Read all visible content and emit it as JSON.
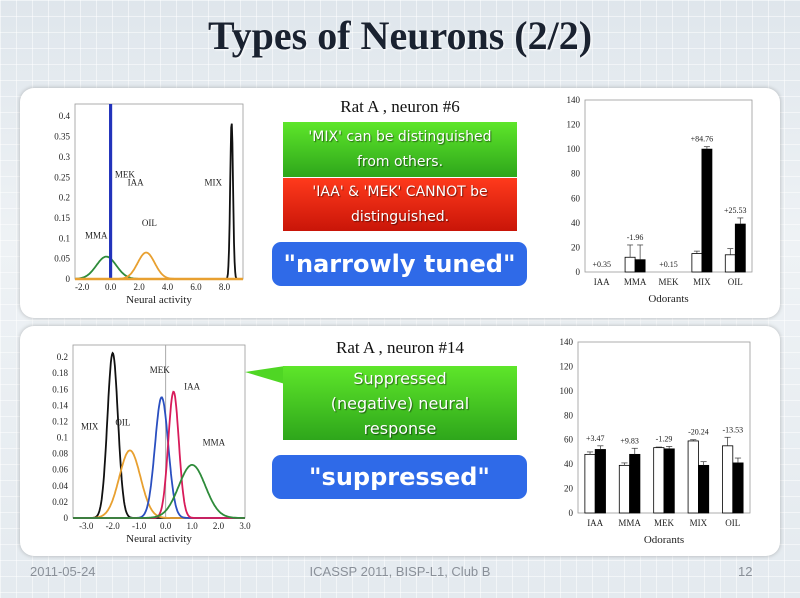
{
  "title": "Types of Neurons (2/2)",
  "panel1": {
    "caption": "Rat A , neuron #6",
    "green_text": "'MIX' can be distinguished from others.",
    "red_text": "'IAA' & 'MEK' CANNOT be distinguished.",
    "tag": "\"narrowly tuned\""
  },
  "panel2": {
    "caption": "Rat A , neuron #14",
    "green_text": "Suppressed (negative) neural response",
    "tag": "\"suppressed\""
  },
  "footer": {
    "date": "2011-05-24",
    "event": "ICASSP 2011, BISP-L1, Club B",
    "page": "12"
  },
  "colors": {
    "green": "#3cc41f",
    "red": "#e52010",
    "blue": "#2f6ae8"
  },
  "chart_data": [
    {
      "type": "line",
      "xlabel": "Neural activity",
      "xlim": [
        -2.5,
        9.3
      ],
      "ylim": [
        0,
        0.43
      ],
      "xticks": [
        "-2.0",
        "0.0",
        "2.0",
        "4.0",
        "6.0",
        "8.0"
      ],
      "xtickvals": [
        -2,
        0,
        2,
        4,
        6,
        8
      ],
      "yticks": [
        "0",
        "0.05",
        "0.1",
        "0.15",
        "0.2",
        "0.25",
        "0.3",
        "0.35",
        "0.4"
      ],
      "ytickvals": [
        0,
        0.05,
        0.1,
        0.15,
        0.2,
        0.25,
        0.3,
        0.35,
        0.4
      ],
      "series": [
        {
          "name": "MMA",
          "color": "#2e8b3a",
          "mean": -0.3,
          "peak": 0.055,
          "sd": 0.7
        },
        {
          "name": "OIL",
          "color": "#e8a030",
          "mean": 2.5,
          "peak": 0.065,
          "sd": 0.6
        },
        {
          "name": "MIX",
          "color": "#111111",
          "mean": 8.5,
          "peak": 0.385,
          "sd": 0.1
        },
        {
          "name": "MEK",
          "color": "#2233bb",
          "mean": 0,
          "peak": 0.43,
          "sd": 0.01
        },
        {
          "name": "IAA",
          "color": "#2233bb",
          "mean": 0,
          "peak": 0.43,
          "sd": 0.01
        }
      ],
      "annotations": [
        {
          "text": "MEK",
          "x": 0.3,
          "y": 0.25
        },
        {
          "text": "IAA",
          "x": 1.2,
          "y": 0.23
        },
        {
          "text": "MIX",
          "x": 6.6,
          "y": 0.23
        },
        {
          "text": "OIL",
          "x": 2.2,
          "y": 0.13
        },
        {
          "text": "MMA",
          "x": -1.8,
          "y": 0.1
        }
      ]
    },
    {
      "type": "bar",
      "xlabel": "Odorants",
      "ylim": [
        0,
        140
      ],
      "yticks": [
        "0",
        "20",
        "40",
        "60",
        "80",
        "100",
        "120",
        "140"
      ],
      "ytickvals": [
        0,
        20,
        40,
        60,
        80,
        100,
        120,
        140
      ],
      "categories": [
        "IAA",
        "MMA",
        "MEK",
        "MIX",
        "OIL"
      ],
      "series": [
        {
          "color": "#ffffff",
          "values": [
            0,
            12,
            0,
            15,
            14
          ],
          "err": [
            0,
            10,
            0,
            2,
            5
          ]
        },
        {
          "color": "#000000",
          "values": [
            0,
            10,
            0,
            100,
            39
          ],
          "err": [
            0,
            12,
            0,
            2,
            5
          ]
        }
      ],
      "labels": [
        "+0.35",
        "-1.96",
        "+0.15",
        "+84.76",
        "+25.53"
      ]
    },
    {
      "type": "line",
      "xlabel": "Neural activity",
      "xlim": [
        -3.5,
        3.0
      ],
      "ylim": [
        0,
        0.215
      ],
      "xticks": [
        "-3.0",
        "-2.0",
        "-1.0",
        "0.0",
        "1.0",
        "2.0",
        "3.0"
      ],
      "xtickvals": [
        -3,
        -2,
        -1,
        0,
        1,
        2,
        3
      ],
      "yticks": [
        "0",
        "0.02",
        "0.04",
        "0.06",
        "0.08",
        "0.1",
        "0.12",
        "0.14",
        "0.16",
        "0.18",
        "0.2"
      ],
      "ytickvals": [
        0,
        0.02,
        0.04,
        0.06,
        0.08,
        0.1,
        0.12,
        0.14,
        0.16,
        0.18,
        0.2
      ],
      "series": [
        {
          "name": "MIX",
          "color": "#111111",
          "mean": -2.0,
          "peak": 0.205,
          "sd": 0.2
        },
        {
          "name": "OIL",
          "color": "#e8a030",
          "mean": -1.35,
          "peak": 0.084,
          "sd": 0.4
        },
        {
          "name": "MEK",
          "color": "#2a4fc0",
          "mean": -0.15,
          "peak": 0.15,
          "sd": 0.25
        },
        {
          "name": "IAA",
          "color": "#d81b5a",
          "mean": 0.3,
          "peak": 0.157,
          "sd": 0.2
        },
        {
          "name": "MMA",
          "color": "#2e8b3a",
          "mean": 1.0,
          "peak": 0.066,
          "sd": 0.5
        }
      ],
      "annotations": [
        {
          "text": "MIX",
          "x": -3.2,
          "y": 0.11
        },
        {
          "text": "OIL",
          "x": -1.9,
          "y": 0.115
        },
        {
          "text": "MEK",
          "x": -0.6,
          "y": 0.18
        },
        {
          "text": "IAA",
          "x": 0.7,
          "y": 0.16
        },
        {
          "text": "MMA",
          "x": 1.4,
          "y": 0.09
        }
      ]
    },
    {
      "type": "bar",
      "xlabel": "Odorants",
      "ylim": [
        0,
        140
      ],
      "yticks": [
        "0",
        "20",
        "40",
        "60",
        "80",
        "100",
        "120",
        "140"
      ],
      "ytickvals": [
        0,
        20,
        40,
        60,
        80,
        100,
        120,
        140
      ],
      "categories": [
        "IAA",
        "MMA",
        "MEK",
        "MIX",
        "OIL"
      ],
      "series": [
        {
          "color": "#ffffff",
          "values": [
            48,
            39,
            53.5,
            59,
            55
          ],
          "err": [
            2,
            2,
            0.5,
            1,
            7
          ]
        },
        {
          "color": "#000000",
          "values": [
            52,
            48,
            52.5,
            39,
            41
          ],
          "err": [
            3,
            5,
            2,
            3,
            4
          ]
        }
      ],
      "labels": [
        "+3.47",
        "+9.83",
        "-1.29",
        "-20.24",
        "-13.53"
      ]
    }
  ]
}
